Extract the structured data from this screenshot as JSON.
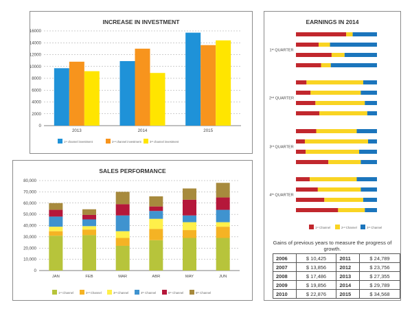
{
  "colors": {
    "blue": "#1f92d8",
    "orange": "#f7941d",
    "yellow": "#ffe500",
    "olive": "#b7c43b",
    "gold": "#f5b324",
    "lightyellow": "#fff04a",
    "steel": "#3f93cf",
    "crimson": "#b5173a",
    "brown": "#a78a3d",
    "red": "#c1272d",
    "earn_yellow": "#f9d423",
    "earn_blue": "#1b75bc"
  },
  "investment": {
    "title": "INCREASE IN INVESTMENT",
    "legend": [
      "1ˢᵗ channel investment",
      "2ⁿᵈ channel investment",
      "3ʳᵈ channel investment"
    ]
  },
  "sales": {
    "title": "SALES PERFORMANCE",
    "legend": [
      "1ˢᵗ Channel",
      "2ⁿᵈ Channel",
      "3ʳᵈ Channel",
      "4ᵗʰ Channel",
      "5ᵗʰ Channel",
      "6ᵗʰ Channel"
    ]
  },
  "earnings": {
    "title": "EARNINGS IN 2014",
    "quarters": [
      "1ˢᵗ QUARTER",
      "2ⁿᵈ QUARTER",
      "3ʳᵈ QUARTER",
      "4ᵗʰ QUARTER"
    ],
    "legend": [
      "1ˢᵗ Channel",
      "2ⁿᵈ Channel",
      "3ʳᵈ Channel"
    ]
  },
  "growth": {
    "caption": "Gains of previous years to measure the progress of growth.",
    "rows": [
      [
        "2006",
        "$ 10,425",
        "2011",
        "$ 24,789"
      ],
      [
        "2007",
        "$ 13,856",
        "2012",
        "$ 23,756"
      ],
      [
        "2008",
        "$ 17,486",
        "2013",
        "$ 27,355"
      ],
      [
        "2009",
        "$ 19,856",
        "2014",
        "$ 29,789"
      ],
      [
        "2010",
        "$ 22,876",
        "2015",
        "$ 34,568"
      ]
    ]
  },
  "chart_data": [
    {
      "type": "bar",
      "title": "INCREASE IN INVESTMENT",
      "categories": [
        "2013",
        "2014",
        "2015"
      ],
      "ylim": [
        0,
        16000
      ],
      "yticks": [
        0,
        2000,
        4000,
        6000,
        8000,
        10000,
        12000,
        14000,
        16000
      ],
      "ytick_labels": [
        "0",
        "2000",
        "4000",
        "6000",
        "8000",
        "10000",
        "12000",
        "14000",
        "16000"
      ],
      "grid": true,
      "legend_position": "bottom",
      "series": [
        {
          "name": "1ˢᵗ channel investment",
          "values": [
            9700,
            10900,
            15700
          ]
        },
        {
          "name": "2ⁿᵈ channel investment",
          "values": [
            10800,
            13000,
            13600
          ]
        },
        {
          "name": "3ʳᵈ channel investment",
          "values": [
            9200,
            8900,
            14400
          ]
        }
      ]
    },
    {
      "type": "bar",
      "stacked": true,
      "title": "SALES PERFORMANCE",
      "categories": [
        "JAN",
        "FEB",
        "MAR",
        "ABR",
        "MAY",
        "JUN"
      ],
      "ylim": [
        0,
        80000
      ],
      "yticks": [
        0,
        10000,
        20000,
        30000,
        40000,
        50000,
        60000,
        70000,
        80000
      ],
      "ytick_labels": [
        "0",
        "10,000",
        "20,000",
        "30,000",
        "40,000",
        "50,000",
        "60,000",
        "70,000",
        "80,000"
      ],
      "grid": true,
      "legend_position": "bottom",
      "series": [
        {
          "name": "1ˢᵗ Channel",
          "values": [
            31000,
            31500,
            22000,
            27000,
            29000,
            29000
          ]
        },
        {
          "name": "2ⁿᵈ Channel",
          "values": [
            4000,
            5000,
            7000,
            10000,
            7000,
            10000
          ]
        },
        {
          "name": "3ʳᵈ Channel",
          "values": [
            4000,
            3000,
            6000,
            9000,
            7000,
            4000
          ]
        },
        {
          "name": "4ᵗʰ Channel",
          "values": [
            9000,
            6000,
            14000,
            7000,
            6000,
            11000
          ]
        },
        {
          "name": "5ᵗʰ Channel",
          "values": [
            6000,
            4000,
            10000,
            4000,
            14000,
            11000
          ]
        },
        {
          "name": "6ᵗʰ Channel",
          "values": [
            6000,
            5000,
            11000,
            9000,
            10000,
            13000
          ]
        }
      ]
    },
    {
      "type": "bar",
      "orientation": "horizontal",
      "stacked": true,
      "percent": true,
      "title": "EARNINGS IN 2014",
      "groups": [
        "1ˢᵗ QUARTER",
        "2ⁿᵈ QUARTER",
        "3ʳᵈ QUARTER",
        "4ᵗʰ QUARTER"
      ],
      "legend_position": "bottom",
      "series": [
        {
          "name": "1ˢᵗ Channel",
          "values": [
            [
              62,
              8,
              30
            ],
            [
              28,
              14,
              58
            ],
            [
              44,
              16,
              40
            ],
            [
              31,
              12,
              57
            ],
            [
              13,
              70,
              17
            ],
            [
              18,
              62,
              20
            ],
            [
              24,
              61,
              15
            ],
            [
              29,
              59,
              12
            ],
            [
              25,
              50,
              25
            ],
            [
              11,
              78,
              11
            ],
            [
              12,
              66,
              22
            ],
            [
              40,
              40,
              20
            ],
            [
              17,
              58,
              25
            ],
            [
              27,
              53,
              20
            ],
            [
              35,
              48,
              17
            ],
            [
              52,
              33,
              15
            ]
          ]
        }
      ],
      "segment_order": [
        "1ˢᵗ Channel",
        "2ⁿᵈ Channel",
        "3ʳᵈ Channel"
      ]
    }
  ]
}
